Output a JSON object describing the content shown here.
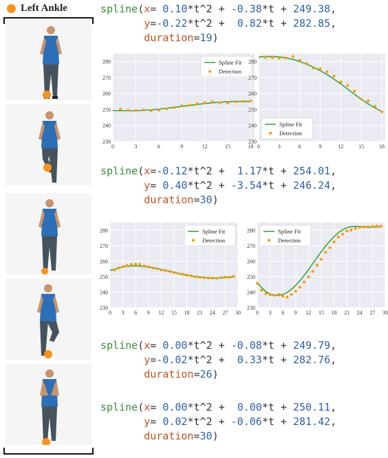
{
  "legend": {
    "label": "Left Ankle",
    "marker_color": "#f7931e"
  },
  "blocks": [
    {
      "fn": "spline",
      "open": "(",
      "xk": "x",
      "xe": "= ",
      "xa": "0.10",
      "xm1": "*t^2 + ",
      "xb": "-0.38",
      "xm2": "*t + ",
      "xc": "249.38",
      "xend": ",",
      "yk": "y",
      "ye": "=",
      "ya": "-0.22",
      "ym1": "*t^2 +  ",
      "yb": "0.82",
      "ym2": "*t + ",
      "yc": "282.85",
      "yend": ",",
      "dk": "duration",
      "de": "=",
      "dv": "19",
      "close": ")"
    },
    {
      "fn": "spline",
      "open": "(",
      "xk": "x",
      "xe": "=",
      "xa": "-0.12",
      "xm1": "*t^2 +  ",
      "xb": "1.17",
      "xm2": "*t + ",
      "xc": "254.01",
      "xend": ",",
      "yk": "y",
      "ye": "= ",
      "ya": "0.40",
      "ym1": "*t^2 + ",
      "yb": "-3.54",
      "ym2": "*t + ",
      "yc": "246.24",
      "yend": ",",
      "dk": "duration",
      "de": "=",
      "dv": "30",
      "close": ")"
    },
    {
      "fn": "spline",
      "open": "(",
      "xk": "x",
      "xe": "= ",
      "xa": "0.00",
      "xm1": "*t^2 + ",
      "xb": "-0.08",
      "xm2": "*t + ",
      "xc": "249.79",
      "xend": ",",
      "yk": "y",
      "ye": "=",
      "ya": "-0.02",
      "ym1": "*t^2 +  ",
      "yb": "0.33",
      "ym2": "*t + ",
      "yc": "282.76",
      "yend": ",",
      "dk": "duration",
      "de": "=",
      "dv": "26",
      "close": ")"
    },
    {
      "fn": "spline",
      "open": "(",
      "xk": "x",
      "xe": "= ",
      "xa": "0.00",
      "xm1": "*t^2 +  ",
      "xb": "0.00",
      "xm2": "*t + ",
      "xc": "250.11",
      "xend": ",",
      "yk": "y",
      "ye": "= ",
      "ya": "0.02",
      "ym1": "*t^2 + ",
      "yb": "-0.06",
      "ym2": "*t + ",
      "yc": "281.42",
      "yend": ",",
      "dk": "duration",
      "de": "=",
      "dv": "30",
      "close": ")"
    }
  ],
  "chart_data": [
    {
      "type": "scatter+line",
      "xlim": [
        0,
        18.5
      ],
      "ylim": [
        230,
        285
      ],
      "xticks": [
        0,
        3,
        6,
        9,
        12,
        15,
        18
      ],
      "yticks": [
        230,
        240,
        250,
        260,
        270,
        280
      ],
      "legend_pos": "top-right",
      "series": [
        {
          "name": "Spline Fit",
          "color": "#2ca02c",
          "x": [
            0,
            1,
            2,
            3,
            4,
            5,
            6,
            7,
            8,
            9,
            10,
            11,
            12,
            13,
            14,
            15,
            16,
            17,
            18
          ],
          "values": [
            249.4,
            249.2,
            249.2,
            249.3,
            249.5,
            249.8,
            250.2,
            250.7,
            251.3,
            251.9,
            252.5,
            253.1,
            253.7,
            254.2,
            254.6,
            254.9,
            255.0,
            255.1,
            255.1
          ]
        },
        {
          "name": "Detection",
          "color": "#ff9900",
          "x": [
            1,
            2,
            3,
            4,
            5,
            6,
            7,
            8,
            9,
            10,
            11,
            12,
            13,
            14,
            15,
            16,
            17,
            18
          ],
          "values": [
            250.2,
            249.6,
            249.4,
            249.8,
            249.1,
            249.6,
            250.4,
            251.2,
            252.4,
            252.9,
            253.6,
            254.3,
            254.9,
            254.2,
            254.0,
            255.0,
            255.1,
            255.4
          ]
        }
      ]
    },
    {
      "type": "scatter+line",
      "xlim": [
        0,
        18.5
      ],
      "ylim": [
        230,
        285
      ],
      "xticks": [
        0,
        3,
        6,
        9,
        12,
        15,
        18
      ],
      "yticks": [
        230,
        240,
        250,
        260,
        270,
        280
      ],
      "legend_pos": "lower-left",
      "series": [
        {
          "name": "Spline Fit",
          "color": "#2ca02c",
          "x": [
            0,
            1,
            2,
            3,
            4,
            5,
            6,
            7,
            8,
            9,
            10,
            11,
            12,
            13,
            14,
            15,
            16,
            17,
            18
          ],
          "values": [
            282.8,
            283.1,
            283.2,
            282.9,
            282.3,
            281.3,
            280.0,
            278.4,
            276.5,
            274.3,
            271.8,
            269.0,
            266.0,
            262.8,
            259.5,
            256.4,
            253.6,
            251.0,
            248.7
          ]
        },
        {
          "name": "Detection",
          "color": "#ff9900",
          "x": [
            1,
            2,
            3,
            4,
            5,
            6,
            7,
            8,
            9,
            10,
            11,
            12,
            13,
            14,
            15,
            16,
            17,
            18
          ],
          "values": [
            282.6,
            282.5,
            282.1,
            282.2,
            283.1,
            280.9,
            278.8,
            276.0,
            275.5,
            273.7,
            270.8,
            267.2,
            265.0,
            261.4,
            256.5,
            255.4,
            252.1,
            248.6
          ]
        }
      ]
    },
    {
      "type": "scatter+line",
      "xlim": [
        0,
        30
      ],
      "ylim": [
        230,
        285
      ],
      "xticks": [
        0,
        3,
        6,
        9,
        12,
        15,
        18,
        21,
        24,
        27,
        30
      ],
      "yticks": [
        230,
        240,
        250,
        260,
        270,
        280
      ],
      "legend_pos": "top-right",
      "series": [
        {
          "name": "Spline Fit",
          "color": "#2ca02c",
          "x": [
            0,
            2,
            4,
            6,
            8,
            10,
            12,
            14,
            16,
            18,
            20,
            22,
            24,
            26,
            28,
            29
          ],
          "values": [
            254.0,
            255.7,
            256.7,
            257.0,
            256.6,
            255.8,
            254.7,
            253.4,
            252.1,
            250.9,
            250.0,
            249.4,
            249.1,
            249.2,
            249.7,
            250.1
          ]
        },
        {
          "name": "Detection",
          "color": "#ff9900",
          "x": [
            1,
            2,
            3,
            4,
            5,
            6,
            7,
            8,
            9,
            10,
            11,
            12,
            13,
            14,
            15,
            16,
            17,
            18,
            19,
            20,
            21,
            22,
            23,
            24,
            25,
            26,
            27,
            28,
            29
          ],
          "values": [
            254.3,
            255.6,
            256.4,
            257.2,
            257.9,
            258.1,
            258.0,
            256.9,
            256.4,
            255.6,
            255.1,
            254.3,
            253.9,
            253.4,
            252.6,
            252.0,
            251.7,
            251.0,
            250.6,
            249.9,
            249.6,
            249.4,
            249.2,
            249.1,
            248.9,
            249.4,
            249.7,
            249.6,
            250.2
          ]
        }
      ]
    },
    {
      "type": "scatter+line",
      "xlim": [
        0,
        30
      ],
      "ylim": [
        230,
        285
      ],
      "xticks": [
        0,
        3,
        6,
        9,
        12,
        15,
        18,
        21,
        24,
        27,
        30
      ],
      "yticks": [
        230,
        240,
        250,
        260,
        270,
        280
      ],
      "legend_pos": "top-left",
      "series": [
        {
          "name": "Spline Fit",
          "color": "#2ca02c",
          "x": [
            0,
            1,
            2,
            3,
            4,
            5,
            6,
            7,
            8,
            9,
            10,
            11,
            12,
            13,
            14,
            15,
            16,
            17,
            18,
            19,
            20,
            21,
            22,
            23,
            24,
            25,
            26,
            27,
            28,
            29
          ],
          "values": [
            246.2,
            242.9,
            240.4,
            238.7,
            237.9,
            237.8,
            238.5,
            239.8,
            241.8,
            244.4,
            247.4,
            250.8,
            254.5,
            258.4,
            262.3,
            266.1,
            269.7,
            273.0,
            275.9,
            278.4,
            280.3,
            281.6,
            282.3,
            282.5,
            282.4,
            282.2,
            282.0,
            282.0,
            282.1,
            282.2
          ]
        },
        {
          "name": "Detection",
          "color": "#ff9900",
          "x": [
            0,
            1,
            2,
            3,
            4,
            5,
            6,
            7,
            8,
            9,
            10,
            11,
            12,
            13,
            14,
            15,
            16,
            17,
            18,
            19,
            20,
            21,
            22,
            23,
            24,
            25,
            26,
            27,
            28,
            29
          ],
          "values": [
            245.7,
            241.2,
            239.1,
            238.3,
            238.0,
            238.6,
            237.4,
            236.7,
            238.5,
            240.6,
            243.2,
            246.6,
            249.8,
            253.4,
            257.5,
            261.2,
            265.8,
            268.7,
            272.4,
            275.6,
            277.4,
            279.5,
            280.2,
            281.0,
            281.9,
            282.0,
            282.1,
            282.5,
            282.7,
            282.6
          ]
        }
      ]
    }
  ]
}
